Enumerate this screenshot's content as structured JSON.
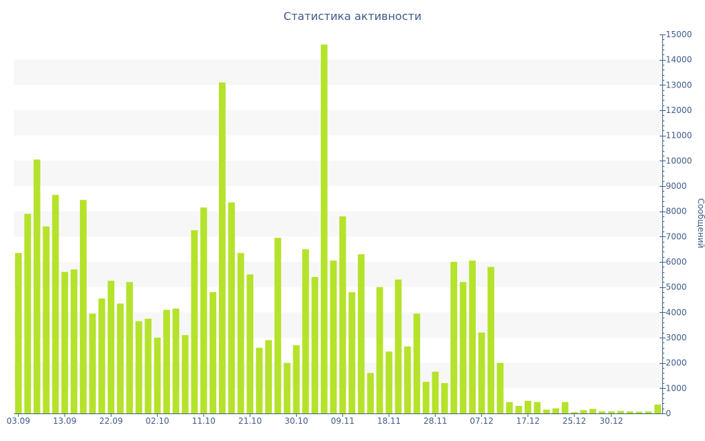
{
  "chart_data": {
    "type": "bar",
    "title": "Статистика активности",
    "ylabel": "Сообщений",
    "ylim": [
      0,
      15000
    ],
    "y_ticks": [
      0,
      1000,
      2000,
      3000,
      4000,
      5000,
      6000,
      7000,
      8000,
      9000,
      10000,
      11000,
      12000,
      13000,
      14000,
      15000
    ],
    "y_tick_labels": [
      "0",
      "1000",
      "2000",
      "3000",
      "4000",
      "5000",
      "6000",
      "7000",
      "8000",
      "9000",
      "10000",
      "11000",
      "12000",
      "13000",
      "14000",
      "15000"
    ],
    "x_tick_labels": [
      {
        "label": "03.09",
        "index": 0
      },
      {
        "label": "13.09",
        "index": 5
      },
      {
        "label": "22.09",
        "index": 10
      },
      {
        "label": "02.10",
        "index": 15
      },
      {
        "label": "11.10",
        "index": 20
      },
      {
        "label": "21.10",
        "index": 25
      },
      {
        "label": "30.10",
        "index": 30
      },
      {
        "label": "09.11",
        "index": 35
      },
      {
        "label": "18.11",
        "index": 40
      },
      {
        "label": "28.11",
        "index": 45
      },
      {
        "label": "07.12",
        "index": 50
      },
      {
        "label": "17.12",
        "index": 55
      },
      {
        "label": "25.12",
        "index": 60
      },
      {
        "label": "30.12",
        "index": 64
      }
    ],
    "values": [
      6350,
      7900,
      10050,
      7400,
      8650,
      5600,
      5700,
      8450,
      3950,
      4550,
      5250,
      4350,
      5200,
      3650,
      3750,
      3000,
      4100,
      4150,
      3100,
      7250,
      8150,
      4800,
      13100,
      8350,
      6350,
      5500,
      2600,
      2900,
      6950,
      2000,
      2700,
      6500,
      5400,
      14600,
      6050,
      7800,
      4800,
      6300,
      1600,
      5000,
      2450,
      5300,
      2650,
      3950,
      1250,
      1650,
      1200,
      6000,
      5200,
      6050,
      3200,
      5800,
      2000,
      450,
      300,
      500,
      450,
      150,
      200,
      450,
      50,
      130,
      180,
      80,
      80,
      100,
      80,
      70,
      80,
      350
    ],
    "grid": "alternating horizontal bands",
    "y_axis_position": "right",
    "bar_color": "#b5e22a",
    "band_color": "#f7f7f7",
    "axis_color": "#3e5a8a"
  }
}
